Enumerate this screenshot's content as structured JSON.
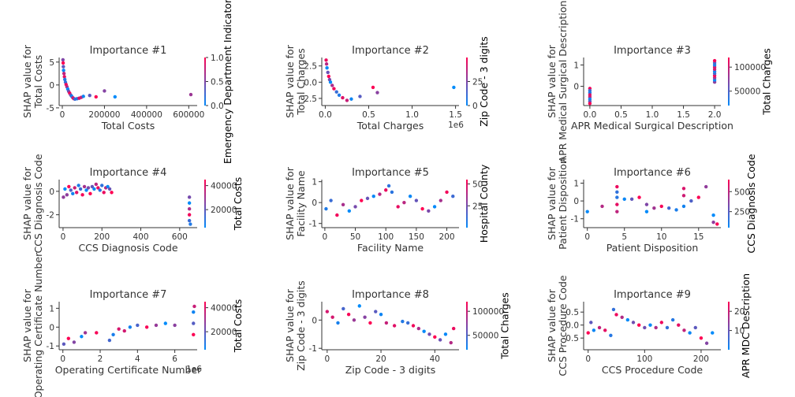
{
  "chart_data": [
    {
      "type": "scatter",
      "title": "Importance #1",
      "xlabel": "Total Costs",
      "ylabel": "SHAP value for\nTotal Costs",
      "xlim": [
        -15000,
        640000
      ],
      "ylim": [
        -4.5,
        6
      ],
      "xticks": [
        0,
        200000,
        400000,
        600000
      ],
      "xtick_labels": [
        "0",
        "200000",
        "400000",
        "600000"
      ],
      "yticks": [
        -5,
        0,
        5
      ],
      "ytick_labels": [
        "-5",
        "0",
        "5"
      ],
      "offset_label": "",
      "colorbar": {
        "label": "Emergency Department Indicator",
        "ticks": [
          0,
          0.5,
          1
        ],
        "tick_labels": [
          "0.0",
          "0.5",
          "1.0"
        ],
        "range": [
          0,
          1
        ]
      },
      "points": [
        [
          3000,
          5.5
        ],
        [
          4000,
          4.8
        ],
        [
          5000,
          4
        ],
        [
          6000,
          3.2
        ],
        [
          8000,
          2.5
        ],
        [
          10000,
          1.8
        ],
        [
          12000,
          1.2
        ],
        [
          15000,
          0.6
        ],
        [
          18000,
          0.1
        ],
        [
          22000,
          -0.4
        ],
        [
          26000,
          -0.9
        ],
        [
          30000,
          -1.4
        ],
        [
          35000,
          -1.8
        ],
        [
          40000,
          -2.2
        ],
        [
          45000,
          -2.5
        ],
        [
          50000,
          -2.8
        ],
        [
          55000,
          -3.0
        ],
        [
          60000,
          -3.1
        ],
        [
          70000,
          -3.0
        ],
        [
          80000,
          -2.9
        ],
        [
          90000,
          -2.7
        ],
        [
          100000,
          -2.5
        ],
        [
          130000,
          -2.3
        ],
        [
          160000,
          -2.6
        ],
        [
          200000,
          -1.3
        ],
        [
          250000,
          -2.6
        ],
        [
          610000,
          -2.1
        ]
      ]
    },
    {
      "type": "scatter",
      "title": "Importance #2",
      "xlabel": "Total Charges",
      "ylabel": "SHAP value for\nTotal Charges",
      "xlim": [
        -40000,
        1540000
      ],
      "ylim": [
        -3.6,
        3.8
      ],
      "xticks": [
        0,
        500000,
        1000000,
        1500000
      ],
      "xtick_labels": [
        "0.0",
        "0.5",
        "1.0",
        "1.5"
      ],
      "yticks": [
        -2.5,
        0,
        2.5
      ],
      "ytick_labels": [
        "-2.5",
        "0.0",
        "2.5"
      ],
      "offset_label": "1e6",
      "colorbar": {
        "label": "Zip Code - 3 digits",
        "ticks": [
          0,
          25
        ],
        "tick_labels": [
          "0",
          "25"
        ],
        "range": [
          0,
          50
        ]
      },
      "points": [
        [
          10000,
          3.4
        ],
        [
          15000,
          2.8
        ],
        [
          20000,
          2.2
        ],
        [
          30000,
          1.5
        ],
        [
          40000,
          0.9
        ],
        [
          50000,
          0.4
        ],
        [
          60000,
          0
        ],
        [
          80000,
          -0.5
        ],
        [
          100000,
          -1
        ],
        [
          130000,
          -1.5
        ],
        [
          160000,
          -2
        ],
        [
          200000,
          -2.4
        ],
        [
          250000,
          -2.8
        ],
        [
          300000,
          -2.6
        ],
        [
          400000,
          -2.2
        ],
        [
          550000,
          -0.8
        ],
        [
          600000,
          -1.6
        ],
        [
          1480000,
          -0.8
        ]
      ]
    },
    {
      "type": "scatter",
      "title": "Importance #3",
      "xlabel": "APR Medical Surgical Description",
      "ylabel": "SHAP value for\nAPR Medical Surgical Description",
      "xlim": [
        -0.1,
        2.1
      ],
      "ylim": [
        -0.9,
        1.35
      ],
      "xticks": [
        0,
        0.5,
        1,
        1.5,
        2
      ],
      "xtick_labels": [
        "0.0",
        "0.5",
        "1.0",
        "1.5",
        "2.0"
      ],
      "yticks": [
        0,
        1
      ],
      "ytick_labels": [
        "0",
        "1"
      ],
      "offset_label": "",
      "colorbar": {
        "label": "Total Charges",
        "ticks": [
          50000,
          100000
        ],
        "tick_labels": [
          "50000",
          "100000"
        ],
        "range": [
          20000,
          120000
        ]
      },
      "points": [
        [
          0,
          -0.1
        ],
        [
          0,
          -0.2
        ],
        [
          0,
          -0.3
        ],
        [
          0,
          -0.4
        ],
        [
          0,
          -0.5
        ],
        [
          0,
          -0.6
        ],
        [
          0,
          -0.7
        ],
        [
          0,
          -0.8
        ],
        [
          2,
          0.2
        ],
        [
          2,
          0.3
        ],
        [
          2,
          0.4
        ],
        [
          2,
          0.5
        ],
        [
          2,
          0.6
        ],
        [
          2,
          0.7
        ],
        [
          2,
          0.8
        ],
        [
          2,
          0.9
        ],
        [
          2,
          1.0
        ],
        [
          2,
          1.1
        ],
        [
          2,
          1.2
        ]
      ]
    },
    {
      "type": "scatter",
      "title": "Importance #4",
      "xlabel": "CCS Diagnosis Code",
      "ylabel": "SHAP value for\nCCS Diagnosis Code",
      "xlim": [
        -20,
        690
      ],
      "ylim": [
        -3.1,
        1
      ],
      "xticks": [
        0,
        200,
        400,
        600
      ],
      "xtick_labels": [
        "0",
        "200",
        "400",
        "600"
      ],
      "yticks": [
        -2,
        0
      ],
      "ytick_labels": [
        "-2",
        "0"
      ],
      "offset_label": "",
      "colorbar": {
        "label": "Total Costs",
        "ticks": [
          20000,
          40000
        ],
        "tick_labels": [
          "20000",
          "40000"
        ],
        "range": [
          5000,
          45000
        ]
      },
      "points": [
        [
          2,
          -0.5
        ],
        [
          10,
          0.2
        ],
        [
          20,
          -0.3
        ],
        [
          30,
          0.4
        ],
        [
          40,
          0.1
        ],
        [
          50,
          -0.2
        ],
        [
          60,
          0.3
        ],
        [
          70,
          -0.1
        ],
        [
          80,
          0.5
        ],
        [
          90,
          0.2
        ],
        [
          100,
          -0.3
        ],
        [
          110,
          0.4
        ],
        [
          120,
          0.1
        ],
        [
          130,
          0.3
        ],
        [
          140,
          -0.2
        ],
        [
          150,
          0.4
        ],
        [
          160,
          0.2
        ],
        [
          170,
          0.6
        ],
        [
          180,
          0.3
        ],
        [
          190,
          0.1
        ],
        [
          200,
          0.5
        ],
        [
          210,
          -0.1
        ],
        [
          220,
          0.3
        ],
        [
          230,
          0.4
        ],
        [
          240,
          0.2
        ],
        [
          250,
          -0.1
        ],
        [
          650,
          -0.5
        ],
        [
          650,
          -1
        ],
        [
          650,
          -1.5
        ],
        [
          650,
          -2
        ],
        [
          650,
          -2.5
        ],
        [
          655,
          -2.8
        ]
      ]
    },
    {
      "type": "scatter",
      "title": "Importance #5",
      "xlabel": "Facility Name",
      "ylabel": "SHAP value for\nFacility Name",
      "xlim": [
        -5,
        220
      ],
      "ylim": [
        -1.2,
        1.1
      ],
      "xticks": [
        0,
        50,
        100,
        150,
        200
      ],
      "xtick_labels": [
        "0",
        "50",
        "100",
        "150",
        "200"
      ],
      "yticks": [
        -1,
        0,
        1
      ],
      "ytick_labels": [
        "-1",
        "0",
        "1"
      ],
      "offset_label": "",
      "colorbar": {
        "label": "Hospital County",
        "ticks": [
          25,
          50
        ],
        "tick_labels": [
          "25",
          "50"
        ],
        "range": [
          0,
          55
        ]
      },
      "points": [
        [
          2,
          -0.3
        ],
        [
          10,
          0.1
        ],
        [
          20,
          -0.6
        ],
        [
          30,
          -0.1
        ],
        [
          40,
          -0.4
        ],
        [
          50,
          -0.2
        ],
        [
          60,
          0.1
        ],
        [
          70,
          0.2
        ],
        [
          80,
          0.3
        ],
        [
          90,
          0.4
        ],
        [
          100,
          0.6
        ],
        [
          105,
          0.8
        ],
        [
          110,
          0.5
        ],
        [
          120,
          -0.2
        ],
        [
          130,
          0
        ],
        [
          140,
          0.3
        ],
        [
          150,
          0.1
        ],
        [
          160,
          -0.3
        ],
        [
          170,
          -0.4
        ],
        [
          180,
          -0.2
        ],
        [
          190,
          0.1
        ],
        [
          200,
          0.5
        ],
        [
          210,
          0.3
        ]
      ]
    },
    {
      "type": "scatter",
      "title": "Importance #6",
      "xlabel": "Patient Disposition",
      "ylabel": "SHAP value for\nPatient Disposition",
      "xlim": [
        -0.5,
        18
      ],
      "ylim": [
        -1.5,
        1.2
      ],
      "xticks": [
        0,
        5,
        10,
        15
      ],
      "xtick_labels": [
        "0",
        "5",
        "10",
        "15"
      ],
      "yticks": [
        -1,
        0,
        1
      ],
      "ytick_labels": [
        "-1",
        "0",
        "1"
      ],
      "offset_label": "",
      "colorbar": {
        "label": "CCS Diagnosis Code",
        "ticks": [
          250,
          500
        ],
        "tick_labels": [
          "250",
          "500"
        ],
        "range": [
          50,
          650
        ]
      },
      "points": [
        [
          0,
          -0.6
        ],
        [
          2,
          -0.3
        ],
        [
          4,
          0.8
        ],
        [
          4,
          0.5
        ],
        [
          4,
          0.2
        ],
        [
          4,
          -0.2
        ],
        [
          4,
          -0.6
        ],
        [
          5,
          0.1
        ],
        [
          6,
          0.1
        ],
        [
          7,
          0.2
        ],
        [
          8,
          -0.2
        ],
        [
          8,
          -0.6
        ],
        [
          9,
          -0.4
        ],
        [
          10,
          -0.3
        ],
        [
          11,
          -0.4
        ],
        [
          12,
          -0.5
        ],
        [
          13,
          0.7
        ],
        [
          13,
          0.3
        ],
        [
          13,
          -0.3
        ],
        [
          14,
          0
        ],
        [
          15,
          0.2
        ],
        [
          16,
          0.8
        ],
        [
          17,
          -0.8
        ],
        [
          17,
          -1.2
        ],
        [
          17.5,
          -1.3
        ]
      ]
    },
    {
      "type": "scatter",
      "title": "Importance #7",
      "xlabel": "Operating Certificate Number",
      "ylabel": "SHAP value for\nOperating Certificate Number",
      "xlim": [
        -200000,
        7200000
      ],
      "ylim": [
        -1.2,
        1.35
      ],
      "xticks": [
        0,
        2000000,
        4000000,
        6000000
      ],
      "xtick_labels": [
        "0",
        "2",
        "4",
        "6"
      ],
      "yticks": [
        -1,
        0,
        1
      ],
      "ytick_labels": [
        "-1",
        "0",
        "1"
      ],
      "offset_label": "1e6",
      "colorbar": {
        "label": "Total Costs",
        "ticks": [
          20000,
          40000
        ],
        "tick_labels": [
          "20000",
          "40000"
        ],
        "range": [
          5000,
          45000
        ]
      },
      "points": [
        [
          50000,
          -0.9
        ],
        [
          300000,
          -0.6
        ],
        [
          600000,
          -0.8
        ],
        [
          1000000,
          -0.5
        ],
        [
          1200000,
          -0.3
        ],
        [
          1800000,
          -0.3
        ],
        [
          2500000,
          -0.7
        ],
        [
          2700000,
          -0.4
        ],
        [
          3000000,
          -0.1
        ],
        [
          3300000,
          -0.2
        ],
        [
          3600000,
          0
        ],
        [
          4000000,
          0.1
        ],
        [
          4500000,
          0
        ],
        [
          5000000,
          0.1
        ],
        [
          5500000,
          0.2
        ],
        [
          6000000,
          0.1
        ],
        [
          7000000,
          -0.4
        ],
        [
          7000000,
          0.2
        ],
        [
          7000000,
          0.8
        ],
        [
          7050000,
          1.1
        ]
      ]
    },
    {
      "type": "scatter",
      "title": "Importance #8",
      "xlabel": "Zip Code - 3 digits",
      "ylabel": "SHAP value for\nZip Code - 3 digits",
      "xlim": [
        -2,
        49
      ],
      "ylim": [
        -1.05,
        0.65
      ],
      "xticks": [
        0,
        20,
        40
      ],
      "xtick_labels": [
        "0",
        "20",
        "40"
      ],
      "yticks": [
        -1,
        0
      ],
      "ytick_labels": [
        "-1",
        "0"
      ],
      "offset_label": "",
      "colorbar": {
        "label": "Total Charges",
        "ticks": [
          50000,
          100000
        ],
        "tick_labels": [
          "50000",
          "100000"
        ],
        "range": [
          20000,
          120000
        ]
      },
      "points": [
        [
          0,
          0.3
        ],
        [
          2,
          0.1
        ],
        [
          4,
          -0.1
        ],
        [
          6,
          0.4
        ],
        [
          8,
          0.2
        ],
        [
          10,
          0
        ],
        [
          12,
          0.5
        ],
        [
          14,
          0.1
        ],
        [
          16,
          -0.1
        ],
        [
          18,
          0.3
        ],
        [
          20,
          0.2
        ],
        [
          22,
          -0.1
        ],
        [
          25,
          -0.2
        ],
        [
          28,
          -0.05
        ],
        [
          30,
          -0.1
        ],
        [
          32,
          -0.2
        ],
        [
          34,
          -0.3
        ],
        [
          36,
          -0.4
        ],
        [
          38,
          -0.5
        ],
        [
          40,
          -0.6
        ],
        [
          42,
          -0.7
        ],
        [
          44,
          -0.5
        ],
        [
          46,
          -0.8
        ],
        [
          47,
          -0.3
        ]
      ]
    },
    {
      "type": "scatter",
      "title": "Importance #9",
      "xlabel": "CCS Procedure Code",
      "ylabel": "SHAP value for\nCCS Procedure Code",
      "xlim": [
        -8,
        235
      ],
      "ylim": [
        -0.95,
        0.9
      ],
      "xticks": [
        0,
        100,
        200
      ],
      "xtick_labels": [
        "0",
        "100",
        "200"
      ],
      "yticks": [
        -0.5,
        0,
        0.5
      ],
      "ytick_labels": [
        "-0.5",
        "0.0",
        "0.5"
      ],
      "offset_label": "",
      "colorbar": {
        "label": "APR MDC Description",
        "ticks": [
          10,
          20
        ],
        "tick_labels": [
          "10",
          "20"
        ],
        "range": [
          0,
          25
        ]
      },
      "points": [
        [
          0,
          -0.3
        ],
        [
          5,
          0.1
        ],
        [
          10,
          -0.2
        ],
        [
          20,
          -0.1
        ],
        [
          30,
          -0.2
        ],
        [
          40,
          -0.4
        ],
        [
          45,
          0.6
        ],
        [
          50,
          0.4
        ],
        [
          60,
          0.3
        ],
        [
          70,
          0.2
        ],
        [
          80,
          0.1
        ],
        [
          90,
          0
        ],
        [
          100,
          -0.1
        ],
        [
          110,
          0
        ],
        [
          120,
          -0.1
        ],
        [
          130,
          0.1
        ],
        [
          140,
          -0.1
        ],
        [
          150,
          0.2
        ],
        [
          160,
          0
        ],
        [
          170,
          -0.2
        ],
        [
          180,
          -0.3
        ],
        [
          190,
          -0.1
        ],
        [
          200,
          -0.5
        ],
        [
          210,
          -0.7
        ],
        [
          220,
          -0.3
        ]
      ]
    }
  ]
}
